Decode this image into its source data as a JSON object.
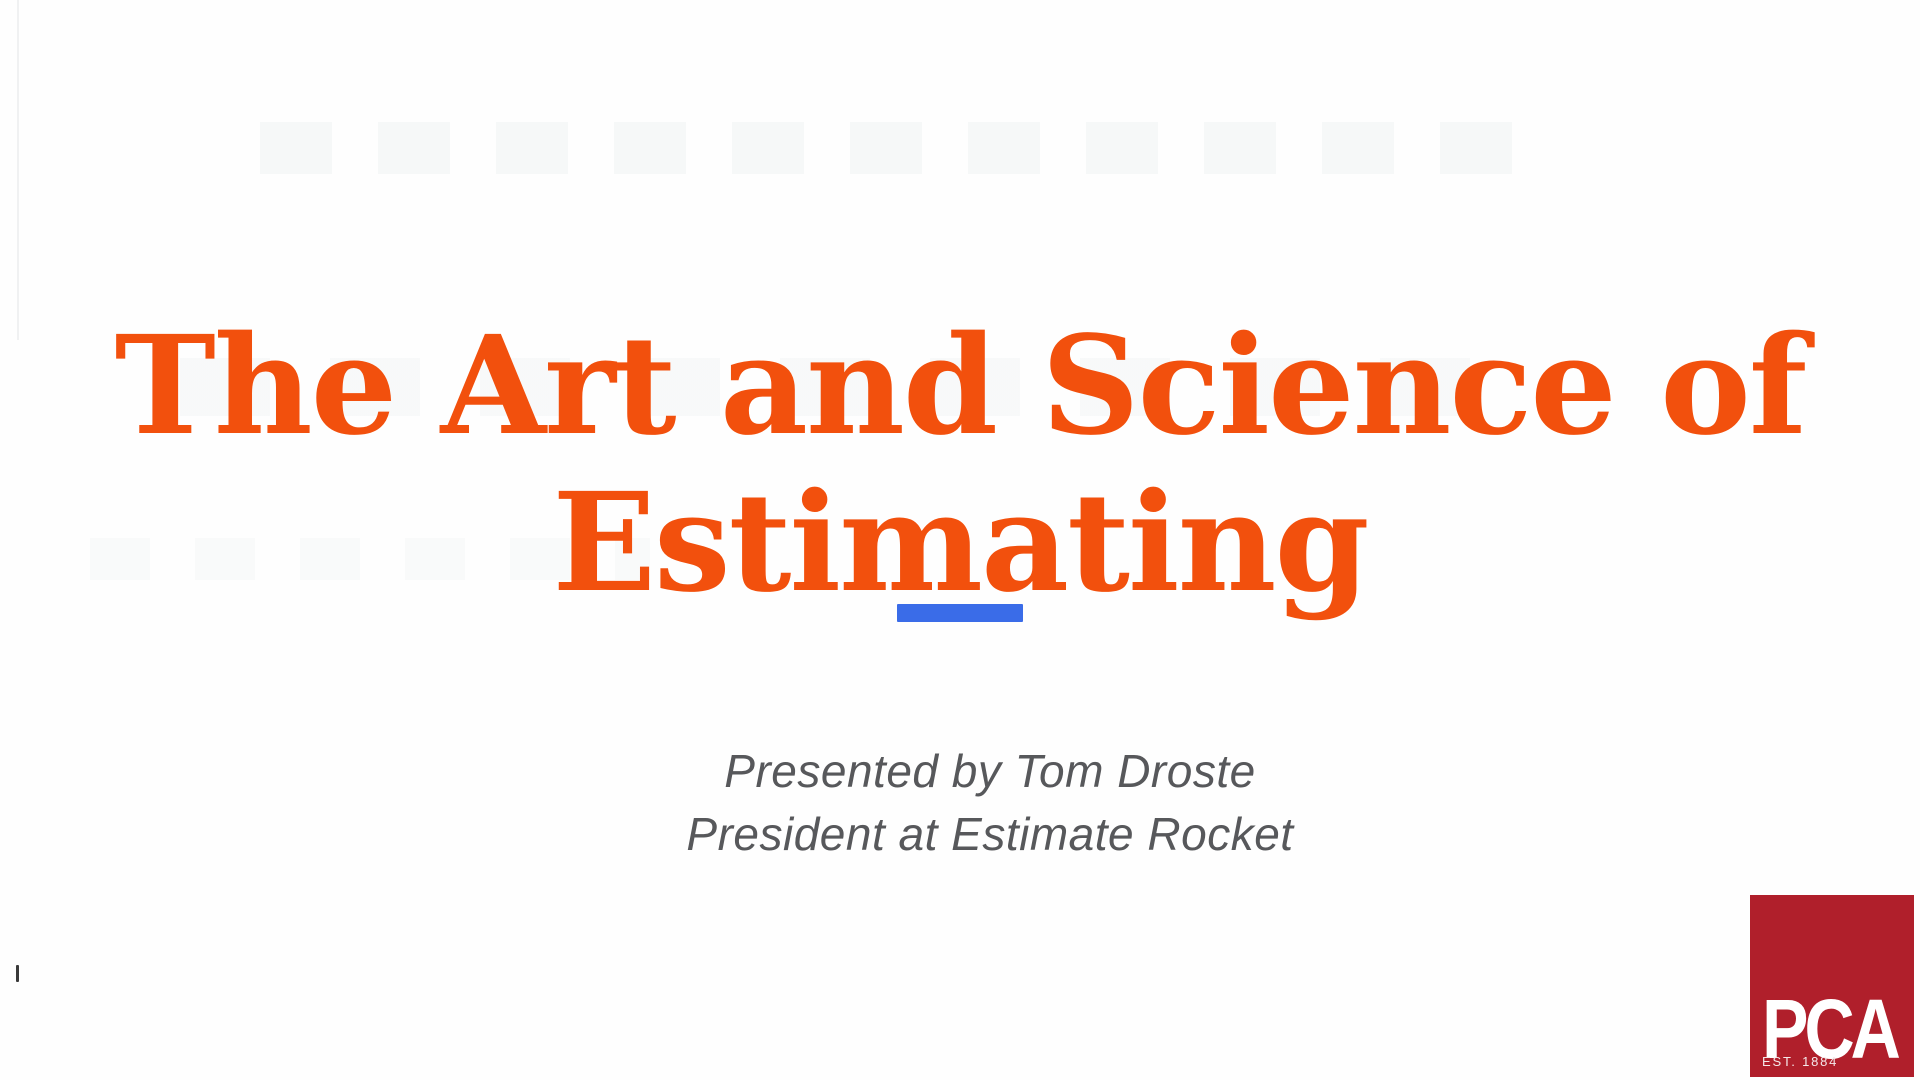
{
  "slide": {
    "title": {
      "line1": "The Art and Science of",
      "line2": "Estimating"
    },
    "subtitle": {
      "line1": "Presented by Tom Droste",
      "line2": "President at Estimate Rocket"
    }
  },
  "logo": {
    "acronym": "PCA",
    "established": "EST. 1884"
  },
  "colors": {
    "background": "#fefefe",
    "title_orange": "#f2500d",
    "accent_blue": "#3a6ce8",
    "subtitle_gray": "#57585b",
    "logo_red": "#b01f2b"
  }
}
